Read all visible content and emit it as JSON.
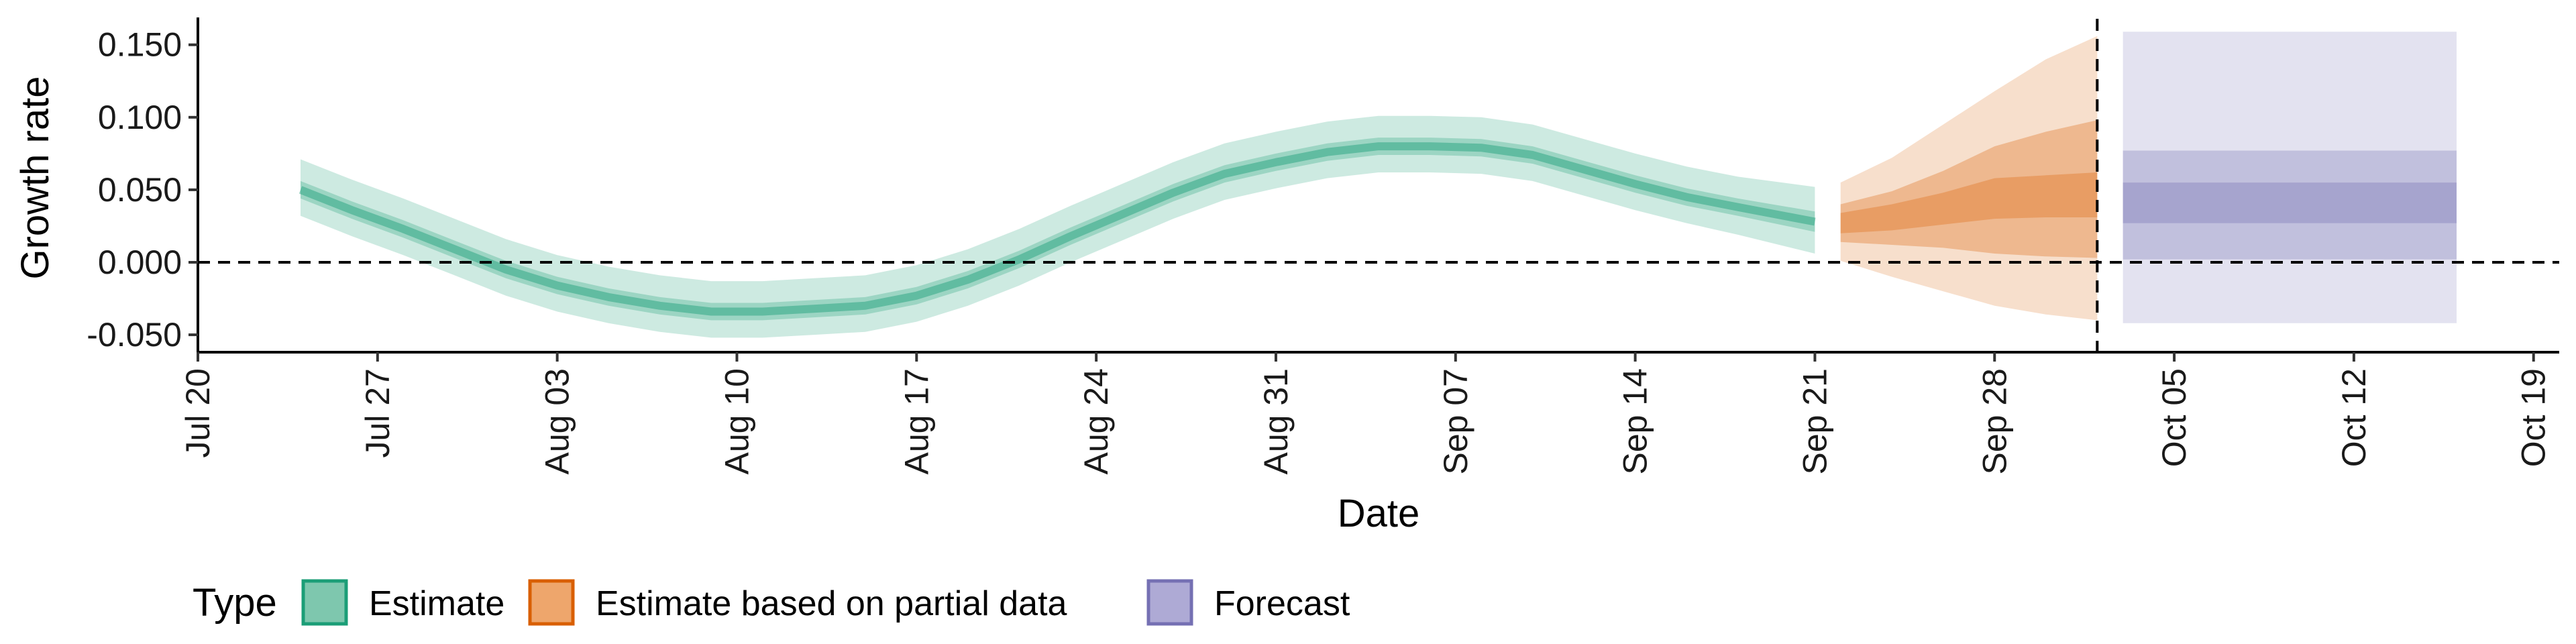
{
  "chart_data": {
    "type": "area",
    "xlabel": "Date",
    "ylabel": "Growth rate",
    "xlim": [
      "2020-07-20",
      "2020-10-20"
    ],
    "ylim": [
      -0.062,
      0.167
    ],
    "x_ticks": [
      "2020-07-20",
      "2020-07-27",
      "2020-08-03",
      "2020-08-10",
      "2020-08-17",
      "2020-08-24",
      "2020-08-31",
      "2020-09-07",
      "2020-09-14",
      "2020-09-21",
      "2020-09-28",
      "2020-10-05",
      "2020-10-12",
      "2020-10-19"
    ],
    "x_tick_labels": [
      "Jul 20",
      "Jul 27",
      "Aug 03",
      "Aug 10",
      "Aug 17",
      "Aug 24",
      "Aug 31",
      "Sep 07",
      "Sep 14",
      "Sep 21",
      "Sep 28",
      "Oct 05",
      "Oct 12",
      "Oct 19"
    ],
    "y_ticks": [
      -0.05,
      0.0,
      0.05,
      0.1,
      0.15
    ],
    "y_tick_labels": [
      "-0.050",
      "0.000",
      "0.050",
      "0.100",
      "0.150"
    ],
    "reference_lines": {
      "horizontal_y": 0.0,
      "vertical_date": "2020-10-02"
    },
    "legend": {
      "title": "Type",
      "position": "bottom",
      "entries": [
        {
          "label": "Estimate",
          "fill": "#7ec7ae",
          "stroke": "#1b9e77"
        },
        {
          "label": "Estimate based on partial data",
          "fill": "#eea66c",
          "stroke": "#d95f02"
        },
        {
          "label": "Forecast",
          "fill": "#aeaad5",
          "stroke": "#7570b3"
        }
      ]
    },
    "series": [
      {
        "name": "Estimate",
        "color": "#1b9e77",
        "x": [
          "2020-07-24",
          "2020-07-26",
          "2020-07-28",
          "2020-07-30",
          "2020-08-01",
          "2020-08-03",
          "2020-08-05",
          "2020-08-07",
          "2020-08-09",
          "2020-08-11",
          "2020-08-13",
          "2020-08-15",
          "2020-08-17",
          "2020-08-19",
          "2020-08-21",
          "2020-08-23",
          "2020-08-25",
          "2020-08-27",
          "2020-08-29",
          "2020-08-31",
          "2020-09-02",
          "2020-09-04",
          "2020-09-06",
          "2020-09-08",
          "2020-09-10",
          "2020-09-12",
          "2020-09-14",
          "2020-09-16",
          "2020-09-18",
          "2020-09-21"
        ],
        "median": [
          0.05,
          0.036,
          0.023,
          0.009,
          -0.005,
          -0.016,
          -0.024,
          -0.03,
          -0.034,
          -0.034,
          -0.032,
          -0.03,
          -0.023,
          -0.012,
          0.002,
          0.018,
          0.033,
          0.048,
          0.061,
          0.069,
          0.076,
          0.08,
          0.08,
          0.079,
          0.074,
          0.064,
          0.054,
          0.045,
          0.038,
          0.028
        ],
        "inner": [
          [
            0.044,
            0.056
          ],
          [
            0.03,
            0.042
          ],
          [
            0.017,
            0.029
          ],
          [
            0.003,
            0.015
          ],
          [
            -0.011,
            0.001
          ],
          [
            -0.022,
            -0.01
          ],
          [
            -0.03,
            -0.018
          ],
          [
            -0.036,
            -0.024
          ],
          [
            -0.04,
            -0.028
          ],
          [
            -0.04,
            -0.028
          ],
          [
            -0.038,
            -0.026
          ],
          [
            -0.036,
            -0.024
          ],
          [
            -0.029,
            -0.017
          ],
          [
            -0.018,
            -0.006
          ],
          [
            -0.004,
            0.008
          ],
          [
            0.012,
            0.024
          ],
          [
            0.027,
            0.039
          ],
          [
            0.042,
            0.054
          ],
          [
            0.055,
            0.067
          ],
          [
            0.063,
            0.075
          ],
          [
            0.07,
            0.082
          ],
          [
            0.074,
            0.086
          ],
          [
            0.074,
            0.086
          ],
          [
            0.073,
            0.085
          ],
          [
            0.068,
            0.08
          ],
          [
            0.058,
            0.07
          ],
          [
            0.048,
            0.06
          ],
          [
            0.039,
            0.051
          ],
          [
            0.032,
            0.044
          ],
          [
            0.021,
            0.035
          ]
        ],
        "outer": [
          [
            0.032,
            0.071
          ],
          [
            0.018,
            0.057
          ],
          [
            0.005,
            0.044
          ],
          [
            -0.009,
            0.03
          ],
          [
            -0.023,
            0.016
          ],
          [
            -0.034,
            0.005
          ],
          [
            -0.042,
            -0.003
          ],
          [
            -0.048,
            -0.009
          ],
          [
            -0.052,
            -0.013
          ],
          [
            -0.052,
            -0.013
          ],
          [
            -0.05,
            -0.011
          ],
          [
            -0.048,
            -0.009
          ],
          [
            -0.041,
            -0.002
          ],
          [
            -0.03,
            0.009
          ],
          [
            -0.016,
            0.023
          ],
          [
            0.0,
            0.039
          ],
          [
            0.015,
            0.054
          ],
          [
            0.03,
            0.069
          ],
          [
            0.043,
            0.082
          ],
          [
            0.051,
            0.09
          ],
          [
            0.058,
            0.097
          ],
          [
            0.062,
            0.101
          ],
          [
            0.062,
            0.101
          ],
          [
            0.061,
            0.1
          ],
          [
            0.056,
            0.095
          ],
          [
            0.046,
            0.085
          ],
          [
            0.036,
            0.075
          ],
          [
            0.027,
            0.066
          ],
          [
            0.019,
            0.059
          ],
          [
            0.006,
            0.052
          ]
        ]
      },
      {
        "name": "Estimate based on partial data",
        "color": "#d95f02",
        "x": [
          "2020-09-22",
          "2020-09-24",
          "2020-09-26",
          "2020-09-28",
          "2020-09-30",
          "2020-10-02"
        ],
        "median": [
          0.027,
          0.031,
          0.037,
          0.043,
          0.045,
          0.046
        ],
        "inner": [
          [
            0.014,
            0.04
          ],
          [
            0.012,
            0.049
          ],
          [
            0.01,
            0.063
          ],
          [
            0.006,
            0.08
          ],
          [
            0.004,
            0.09
          ],
          [
            0.003,
            0.098
          ]
        ],
        "outer": [
          [
            0.001,
            0.055
          ],
          [
            -0.01,
            0.072
          ],
          [
            -0.02,
            0.095
          ],
          [
            -0.03,
            0.118
          ],
          [
            -0.036,
            0.14
          ],
          [
            -0.04,
            0.156
          ]
        ],
        "inner_band": [
          [
            0.02,
            0.034
          ],
          [
            0.022,
            0.04
          ],
          [
            0.026,
            0.048
          ],
          [
            0.03,
            0.058
          ],
          [
            0.031,
            0.06
          ],
          [
            0.031,
            0.062
          ]
        ]
      },
      {
        "name": "Forecast",
        "color": "#7570b3",
        "x": [
          "2020-10-03",
          "2020-10-16"
        ],
        "inner": [
          [
            0.027,
            0.055
          ],
          [
            0.027,
            0.055
          ]
        ],
        "mid": [
          [
            0.002,
            0.077
          ],
          [
            0.002,
            0.077
          ]
        ],
        "outer": [
          [
            -0.042,
            0.159
          ],
          [
            -0.042,
            0.159
          ]
        ]
      }
    ]
  }
}
